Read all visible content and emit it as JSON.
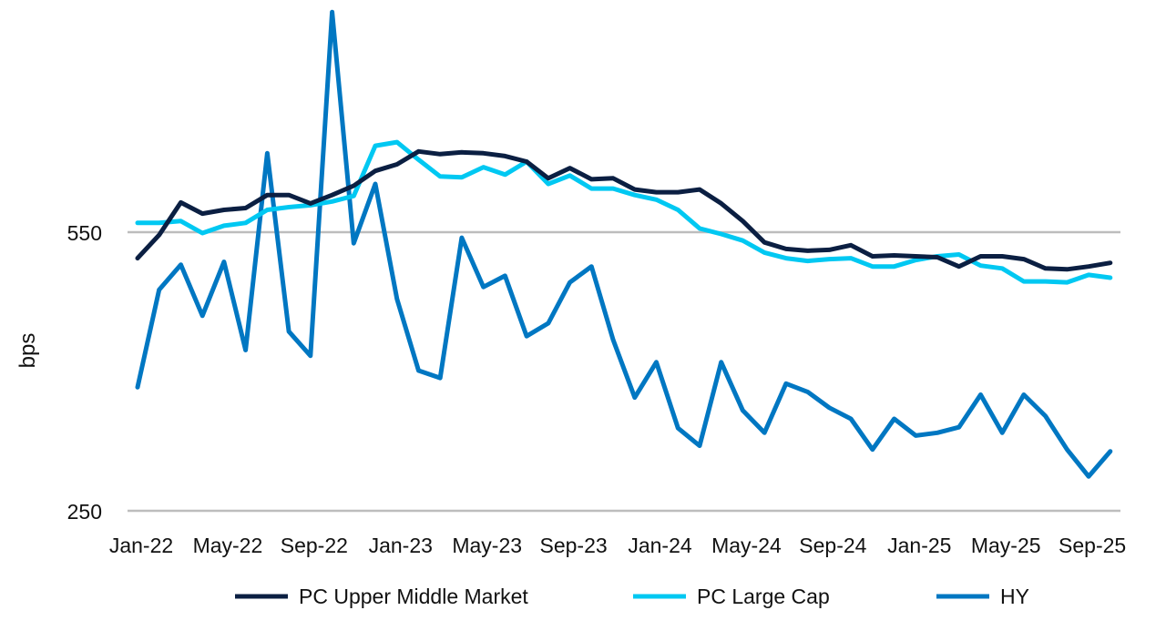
{
  "chart_data": {
    "type": "line",
    "title": "",
    "xlabel": "",
    "ylabel": "bps",
    "ylim": [
      250,
      790
    ],
    "y_ticks": [
      250,
      550
    ],
    "grid": "horizontal at 250 and 550",
    "legend_position": "bottom",
    "x": [
      "Jan-22",
      "Feb-22",
      "Mar-22",
      "Apr-22",
      "May-22",
      "Jun-22",
      "Jul-22",
      "Aug-22",
      "Sep-22",
      "Oct-22",
      "Nov-22",
      "Dec-22",
      "Jan-23",
      "Feb-23",
      "Mar-23",
      "Apr-23",
      "May-23",
      "Jun-23",
      "Jul-23",
      "Aug-23",
      "Sep-23",
      "Oct-23",
      "Nov-23",
      "Dec-23",
      "Jan-24",
      "Feb-24",
      "Mar-24",
      "Apr-24",
      "May-24",
      "Jun-24",
      "Jul-24",
      "Aug-24",
      "Sep-24",
      "Oct-24",
      "Nov-24",
      "Dec-24",
      "Jan-25",
      "Feb-25",
      "Mar-25",
      "Apr-25",
      "May-25",
      "Jun-25",
      "Jul-25",
      "Aug-25",
      "Sep-25",
      "Oct-25"
    ],
    "x_tick_labels": [
      "Jan-22",
      "May-22",
      "Sep-22",
      "Jan-23",
      "May-23",
      "Sep-23",
      "Jan-24",
      "May-24",
      "Sep-24",
      "Jan-25",
      "May-25",
      "Sep-25"
    ],
    "series": [
      {
        "name": "PC Upper Middle Market",
        "color": "#0b1f42",
        "values": [
          522,
          547,
          582,
          570,
          574,
          576,
          590,
          590,
          581,
          590,
          600,
          616,
          623,
          637,
          634,
          636,
          635,
          632,
          626,
          608,
          619,
          607,
          608,
          596,
          593,
          593,
          596,
          581,
          562,
          539,
          532,
          530,
          531,
          536,
          524,
          525,
          524,
          523,
          513,
          524,
          524,
          521,
          511,
          510,
          513,
          517
        ]
      },
      {
        "name": "PC Large Cap",
        "color": "#00c8f2",
        "values": [
          560,
          560,
          562,
          549,
          557,
          560,
          574,
          577,
          579,
          583,
          589,
          643,
          647,
          628,
          610,
          609,
          620,
          612,
          626,
          602,
          611,
          597,
          597,
          590,
          585,
          574,
          554,
          548,
          541,
          528,
          522,
          519,
          521,
          522,
          513,
          513,
          520,
          524,
          526,
          514,
          511,
          497,
          497,
          496,
          504,
          501
        ]
      },
      {
        "name": "HY",
        "color": "#0077c2",
        "values": [
          383,
          488,
          515,
          460,
          518,
          423,
          635,
          443,
          417,
          787,
          538,
          602,
          478,
          401,
          393,
          544,
          491,
          503,
          438,
          452,
          496,
          513,
          434,
          372,
          410,
          339,
          320,
          410,
          358,
          334,
          387,
          378,
          361,
          349,
          316,
          349,
          331,
          334,
          340,
          375,
          334,
          375,
          352,
          316,
          287,
          314
        ]
      }
    ]
  }
}
